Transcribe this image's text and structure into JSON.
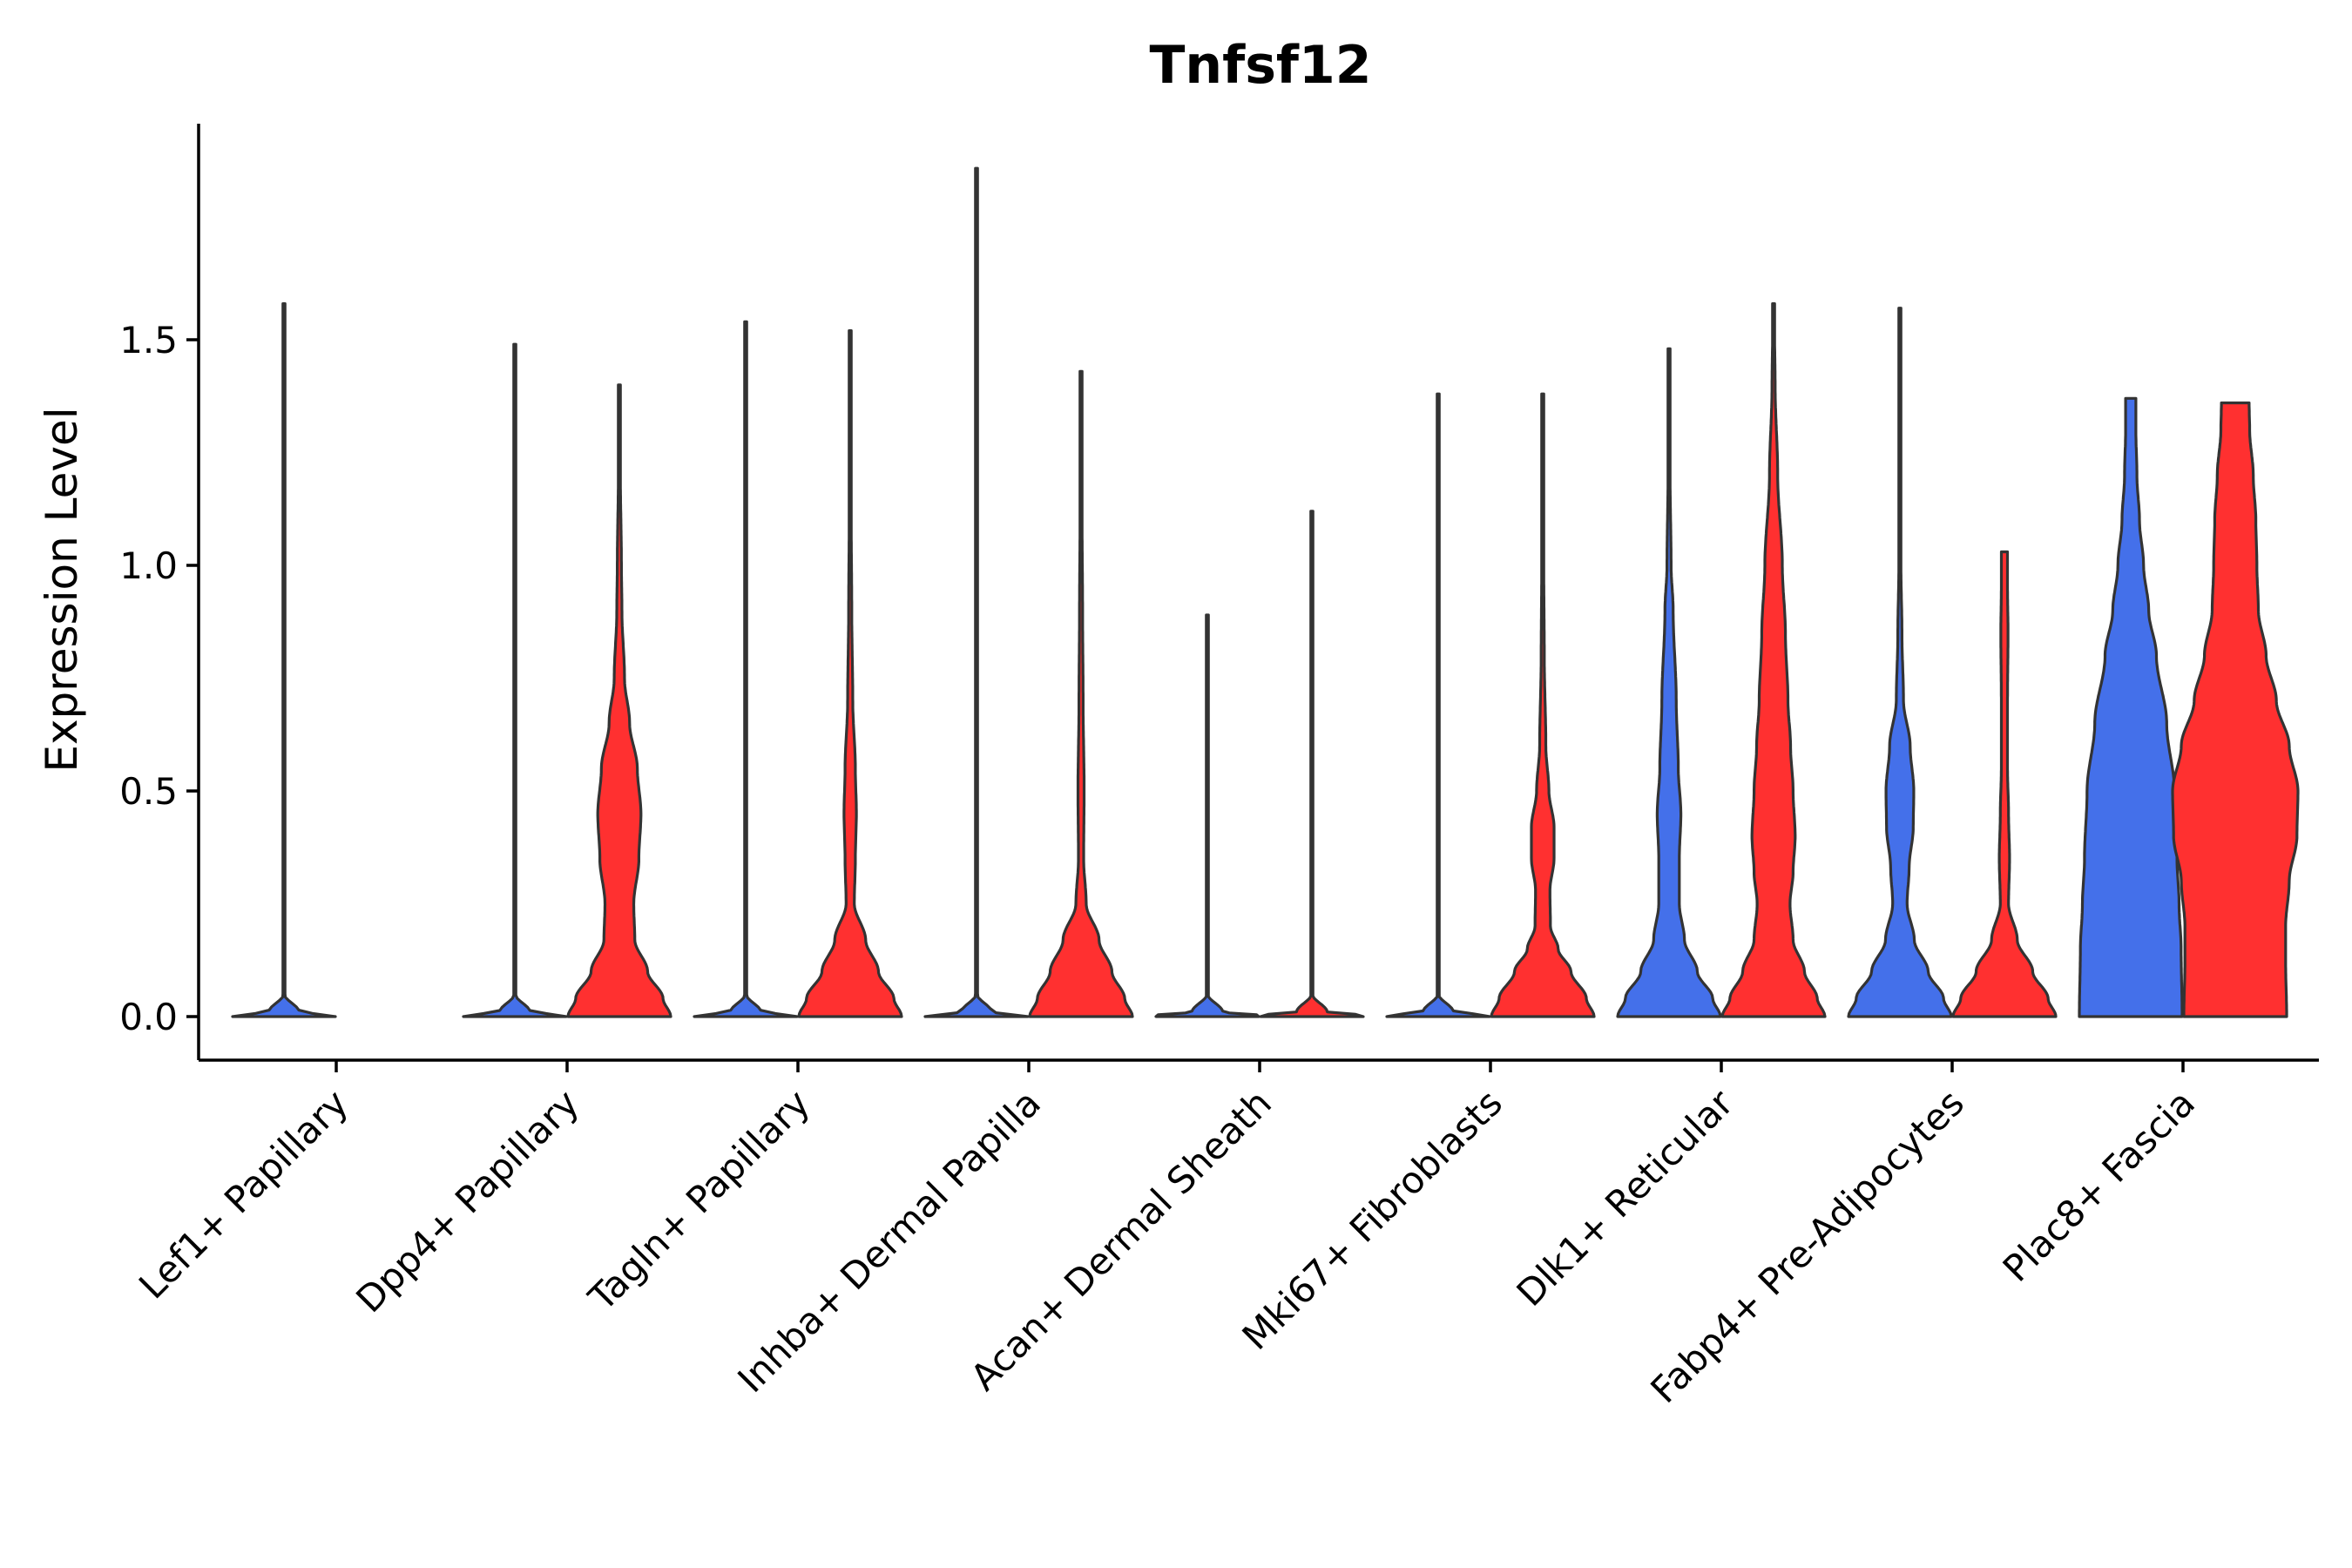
{
  "chart_data": {
    "type": "violin",
    "title": "Tnfsf12",
    "xlabel": "",
    "ylabel": "Expression Level",
    "ylim": [
      -0.1,
      1.95
    ],
    "yticks": [
      0.0,
      0.5,
      1.0,
      1.5
    ],
    "ytick_labels": [
      "0.0",
      "0.5",
      "1.0",
      "1.5"
    ],
    "legend": "none",
    "colors": {
      "group1": "#4470EA",
      "group2": "#FF3030",
      "outline": "#333333"
    },
    "categories": [
      "Lef1+ Papillary",
      "Dpp4+ Papillary",
      "Tagln+ Papillary",
      "Inhba+ Dermal Papilla",
      "Acan+ Dermal Sheath",
      "Mki67+ Fibroblasts",
      "Dlk1+ Reticular",
      "Fabp4+ Pre-Adipocytes",
      "Plac8+ Fascia"
    ],
    "series": [
      {
        "name": "group1",
        "color": "#4470EA",
        "max_values": [
          1.58,
          1.49,
          1.54,
          1.88,
          0.89,
          1.38,
          1.48,
          1.57,
          1.37
        ],
        "density": [
          [
            [
              0,
              1
            ],
            [
              0.003,
              1
            ],
            [
              0.01,
              0.3
            ],
            [
              0.05,
              0.004
            ],
            [
              1.58,
              0.003
            ]
          ],
          [
            [
              0,
              1
            ],
            [
              0.003,
              1
            ],
            [
              0.01,
              0.3
            ],
            [
              0.05,
              0.004
            ],
            [
              1.49,
              0.003
            ]
          ],
          [
            [
              0,
              1
            ],
            [
              0.003,
              1
            ],
            [
              0.01,
              0.3
            ],
            [
              0.05,
              0.004
            ],
            [
              1.54,
              0.003
            ]
          ],
          [
            [
              0,
              1
            ],
            [
              0.003,
              1
            ],
            [
              0.01,
              0.3
            ],
            [
              0.05,
              0.004
            ],
            [
              1.88,
              0.003
            ]
          ],
          [
            [
              0,
              1
            ],
            [
              0.003,
              1
            ],
            [
              0.01,
              0.3
            ],
            [
              0.05,
              0.004
            ],
            [
              0.89,
              0.003
            ]
          ],
          [
            [
              0,
              1
            ],
            [
              0.003,
              1
            ],
            [
              0.01,
              0.3
            ],
            [
              0.05,
              0.004
            ],
            [
              1.38,
              0.003
            ]
          ],
          [
            [
              0,
              1
            ],
            [
              0.04,
              0.85
            ],
            [
              0.1,
              0.55
            ],
            [
              0.17,
              0.3
            ],
            [
              0.25,
              0.2
            ],
            [
              0.35,
              0.2
            ],
            [
              0.45,
              0.23
            ],
            [
              0.55,
              0.18
            ],
            [
              0.7,
              0.14
            ],
            [
              0.9,
              0.08
            ],
            [
              1.0,
              0.04
            ],
            [
              1.2,
              0.02
            ],
            [
              1.48,
              0.01
            ]
          ],
          [
            [
              0,
              1
            ],
            [
              0.04,
              0.85
            ],
            [
              0.1,
              0.55
            ],
            [
              0.17,
              0.28
            ],
            [
              0.25,
              0.14
            ],
            [
              0.33,
              0.18
            ],
            [
              0.42,
              0.26
            ],
            [
              0.5,
              0.27
            ],
            [
              0.6,
              0.2
            ],
            [
              0.7,
              0.07
            ],
            [
              0.85,
              0.04
            ],
            [
              1.0,
              0.02
            ],
            [
              1.2,
              0.01
            ],
            [
              1.57,
              0.01
            ]
          ],
          [
            [
              0,
              1
            ],
            [
              0.15,
              0.98
            ],
            [
              0.25,
              0.94
            ],
            [
              0.35,
              0.9
            ],
            [
              0.5,
              0.85
            ],
            [
              0.65,
              0.7
            ],
            [
              0.8,
              0.5
            ],
            [
              0.9,
              0.35
            ],
            [
              1.0,
              0.25
            ],
            [
              1.1,
              0.17
            ],
            [
              1.2,
              0.12
            ],
            [
              1.3,
              0.1
            ],
            [
              1.37,
              0.1
            ]
          ]
        ]
      },
      {
        "name": "group2",
        "color": "#FF3030",
        "max_values": [
          null,
          1.4,
          1.52,
          1.43,
          1.12,
          1.38,
          1.58,
          1.03,
          1.36
        ],
        "density": [
          null,
          [
            [
              0,
              1
            ],
            [
              0.04,
              0.85
            ],
            [
              0.1,
              0.55
            ],
            [
              0.17,
              0.3
            ],
            [
              0.25,
              0.28
            ],
            [
              0.35,
              0.38
            ],
            [
              0.45,
              0.42
            ],
            [
              0.55,
              0.35
            ],
            [
              0.65,
              0.2
            ],
            [
              0.75,
              0.1
            ],
            [
              0.9,
              0.05
            ],
            [
              1.0,
              0.04
            ],
            [
              1.2,
              0.02
            ],
            [
              1.4,
              0.01
            ]
          ],
          [
            [
              0,
              1
            ],
            [
              0.04,
              0.85
            ],
            [
              0.1,
              0.55
            ],
            [
              0.17,
              0.3
            ],
            [
              0.25,
              0.08
            ],
            [
              0.35,
              0.1
            ],
            [
              0.45,
              0.12
            ],
            [
              0.55,
              0.1
            ],
            [
              0.7,
              0.05
            ],
            [
              0.9,
              0.03
            ],
            [
              1.1,
              0.02
            ],
            [
              1.3,
              0.01
            ],
            [
              1.52,
              0.01
            ]
          ],
          [
            [
              0,
              1
            ],
            [
              0.04,
              0.85
            ],
            [
              0.1,
              0.6
            ],
            [
              0.17,
              0.35
            ],
            [
              0.25,
              0.1
            ],
            [
              0.35,
              0.05
            ],
            [
              0.5,
              0.06
            ],
            [
              0.7,
              0.04
            ],
            [
              0.9,
              0.03
            ],
            [
              1.1,
              0.02
            ],
            [
              1.3,
              0.01
            ],
            [
              1.43,
              0.01
            ]
          ],
          [
            [
              0,
              1
            ],
            [
              0.003,
              1
            ],
            [
              0.01,
              0.3
            ],
            [
              0.05,
              0.004
            ],
            [
              1.12,
              0.003
            ]
          ],
          [
            [
              0,
              1
            ],
            [
              0.04,
              0.85
            ],
            [
              0.1,
              0.55
            ],
            [
              0.15,
              0.3
            ],
            [
              0.2,
              0.15
            ],
            [
              0.28,
              0.14
            ],
            [
              0.35,
              0.22
            ],
            [
              0.42,
              0.22
            ],
            [
              0.5,
              0.12
            ],
            [
              0.6,
              0.06
            ],
            [
              0.8,
              0.03
            ],
            [
              1.0,
              0.02
            ],
            [
              1.2,
              0.01
            ],
            [
              1.38,
              0.01
            ]
          ],
          [
            [
              0,
              1
            ],
            [
              0.04,
              0.85
            ],
            [
              0.1,
              0.6
            ],
            [
              0.17,
              0.38
            ],
            [
              0.25,
              0.32
            ],
            [
              0.32,
              0.38
            ],
            [
              0.4,
              0.42
            ],
            [
              0.5,
              0.38
            ],
            [
              0.6,
              0.33
            ],
            [
              0.7,
              0.28
            ],
            [
              0.85,
              0.23
            ],
            [
              1.0,
              0.17
            ],
            [
              1.2,
              0.08
            ],
            [
              1.4,
              0.03
            ],
            [
              1.58,
              0.01
            ]
          ],
          [
            [
              0,
              1
            ],
            [
              0.04,
              0.85
            ],
            [
              0.1,
              0.55
            ],
            [
              0.17,
              0.25
            ],
            [
              0.25,
              0.08
            ],
            [
              0.35,
              0.1
            ],
            [
              0.45,
              0.08
            ],
            [
              0.55,
              0.06
            ],
            [
              0.7,
              0.06
            ],
            [
              0.85,
              0.07
            ],
            [
              0.95,
              0.06
            ],
            [
              1.03,
              0.06
            ]
          ],
          [
            [
              0,
              1
            ],
            [
              0.12,
              0.98
            ],
            [
              0.2,
              0.98
            ],
            [
              0.3,
              1.05
            ],
            [
              0.4,
              1.2
            ],
            [
              0.5,
              1.22
            ],
            [
              0.6,
              1.05
            ],
            [
              0.7,
              0.8
            ],
            [
              0.8,
              0.6
            ],
            [
              0.9,
              0.45
            ],
            [
              1.0,
              0.42
            ],
            [
              1.1,
              0.4
            ],
            [
              1.2,
              0.35
            ],
            [
              1.3,
              0.28
            ],
            [
              1.36,
              0.27
            ]
          ]
        ]
      }
    ]
  }
}
